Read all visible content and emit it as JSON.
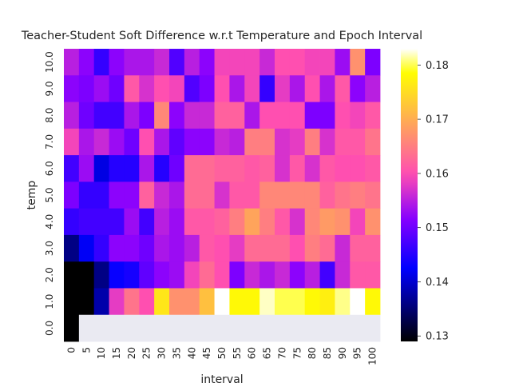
{
  "chart_data": {
    "type": "heatmap",
    "title": "Teacher-Student Soft Difference w.r.t Temperature and Epoch Interval",
    "xlabel": "interval",
    "ylabel": "temp",
    "x_ticks": [
      "0",
      "5",
      "10",
      "15",
      "20",
      "25",
      "30",
      "35",
      "40",
      "45",
      "50",
      "55",
      "60",
      "65",
      "70",
      "75",
      "80",
      "85",
      "90",
      "95",
      "100"
    ],
    "y_ticks": [
      "0.0",
      "1.0",
      "2.0",
      "3.0",
      "4.0",
      "5.0",
      "6.0",
      "7.0",
      "8.0",
      "9.0",
      "10.0"
    ],
    "colorbar": {
      "colormap": "gnuplot2",
      "range": [
        0.129,
        0.183
      ],
      "ticks": [
        "0.13",
        "0.14",
        "0.15",
        "0.16",
        "0.17",
        "0.18"
      ],
      "tick_values": [
        0.13,
        0.14,
        0.15,
        0.16,
        0.17,
        0.18
      ]
    },
    "missing_color": "#eaeaf2",
    "rows": [
      {
        "temp": "10.0",
        "values": [
          0.155,
          0.152,
          0.146,
          0.152,
          0.154,
          0.154,
          0.156,
          0.148,
          0.155,
          0.152,
          0.159,
          0.159,
          0.159,
          0.156,
          0.16,
          0.16,
          0.159,
          0.159,
          0.153,
          0.167,
          0.151
        ]
      },
      {
        "temp": "9.0",
        "values": [
          0.152,
          0.151,
          0.153,
          0.15,
          0.161,
          0.157,
          0.16,
          0.159,
          0.148,
          0.151,
          0.16,
          0.154,
          0.159,
          0.146,
          0.158,
          0.154,
          0.16,
          0.154,
          0.161,
          0.152,
          0.155
        ]
      },
      {
        "temp": "8.0",
        "values": [
          0.155,
          0.15,
          0.147,
          0.147,
          0.154,
          0.151,
          0.166,
          0.152,
          0.156,
          0.156,
          0.162,
          0.162,
          0.154,
          0.16,
          0.16,
          0.16,
          0.151,
          0.151,
          0.16,
          0.159,
          0.161
        ]
      },
      {
        "temp": "7.0",
        "values": [
          0.159,
          0.154,
          0.156,
          0.153,
          0.15,
          0.16,
          0.154,
          0.149,
          0.152,
          0.152,
          0.156,
          0.155,
          0.165,
          0.165,
          0.157,
          0.158,
          0.165,
          0.157,
          0.161,
          0.161,
          0.164
        ]
      },
      {
        "temp": "6.0",
        "values": [
          0.147,
          0.153,
          0.141,
          0.145,
          0.145,
          0.154,
          0.145,
          0.15,
          0.163,
          0.163,
          0.162,
          0.162,
          0.161,
          0.162,
          0.157,
          0.161,
          0.157,
          0.161,
          0.16,
          0.16,
          0.161
        ]
      },
      {
        "temp": "5.0",
        "values": [
          0.151,
          0.146,
          0.146,
          0.152,
          0.152,
          0.162,
          0.156,
          0.154,
          0.163,
          0.163,
          0.157,
          0.161,
          0.161,
          0.166,
          0.166,
          0.166,
          0.166,
          0.162,
          0.164,
          0.165,
          0.164
        ]
      },
      {
        "temp": "4.0",
        "values": [
          0.146,
          0.147,
          0.147,
          0.147,
          0.153,
          0.147,
          0.155,
          0.153,
          0.161,
          0.161,
          0.162,
          0.165,
          0.169,
          0.165,
          0.161,
          0.157,
          0.166,
          0.168,
          0.167,
          0.159,
          0.167
        ]
      },
      {
        "temp": "3.0",
        "values": [
          0.136,
          0.142,
          0.146,
          0.152,
          0.152,
          0.15,
          0.154,
          0.153,
          0.155,
          0.161,
          0.16,
          0.158,
          0.163,
          0.163,
          0.163,
          0.16,
          0.165,
          0.163,
          0.156,
          0.162,
          0.162
        ]
      },
      {
        "temp": "2.0",
        "values": [
          0.129,
          0.129,
          0.136,
          0.143,
          0.144,
          0.149,
          0.152,
          0.153,
          0.159,
          0.163,
          0.16,
          0.151,
          0.156,
          0.154,
          0.156,
          0.152,
          0.155,
          0.147,
          0.156,
          0.161,
          0.161
        ]
      },
      {
        "temp": "1.0",
        "values": [
          0.129,
          0.129,
          0.138,
          0.158,
          0.164,
          0.16,
          0.176,
          0.167,
          0.167,
          0.172,
          0.183,
          0.178,
          0.178,
          0.182,
          0.18,
          0.18,
          0.178,
          0.177,
          0.181,
          0.183,
          0.178
        ]
      },
      {
        "temp": "0.0",
        "values": [
          0.129,
          null,
          null,
          null,
          null,
          null,
          null,
          null,
          null,
          null,
          null,
          null,
          null,
          null,
          null,
          null,
          null,
          null,
          null,
          null,
          null
        ]
      }
    ]
  }
}
